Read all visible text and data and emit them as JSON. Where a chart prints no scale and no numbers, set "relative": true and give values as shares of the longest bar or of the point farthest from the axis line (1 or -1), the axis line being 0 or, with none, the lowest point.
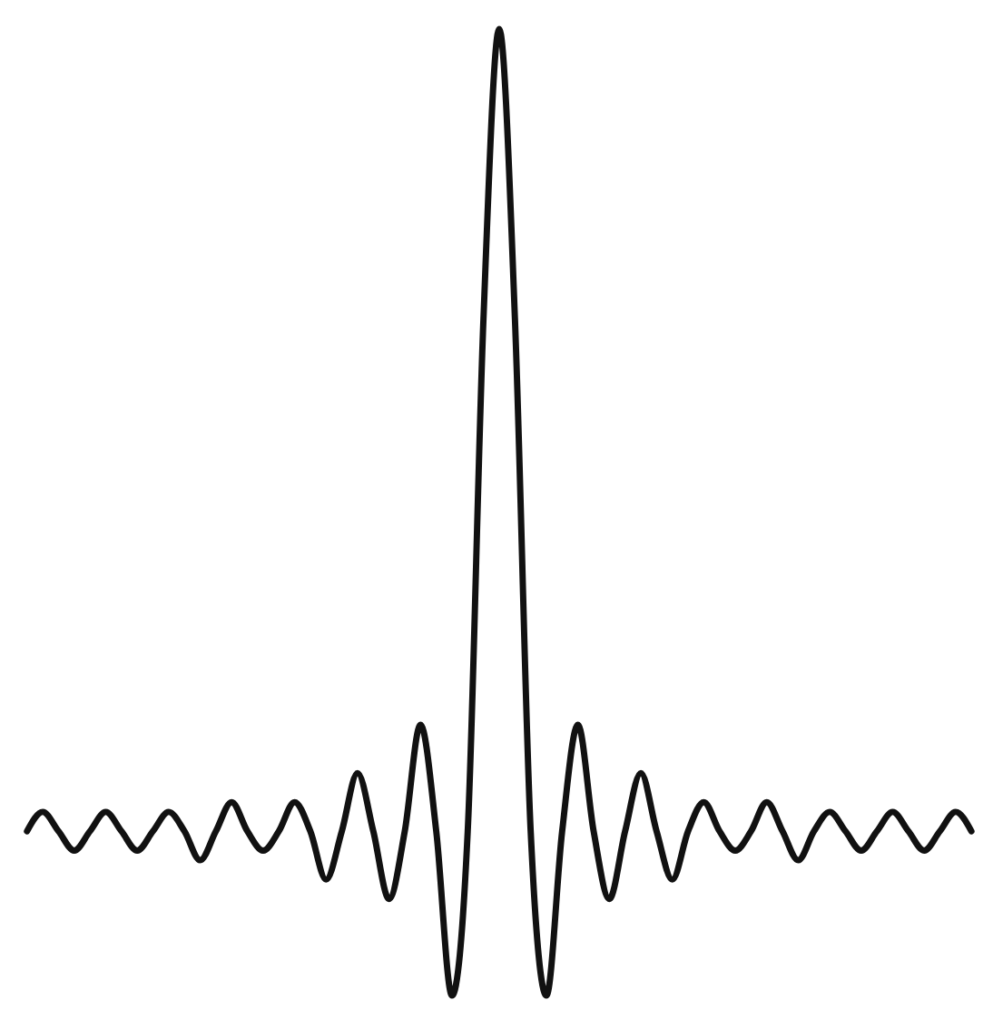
{
  "chart_data": {
    "type": "line",
    "relative": true,
    "color": "#111111",
    "categories": [
      null,
      null,
      null,
      null,
      null,
      null,
      null,
      null,
      null,
      null,
      null,
      null,
      null,
      null,
      null,
      null,
      null,
      null,
      null,
      null,
      null,
      null,
      null,
      null,
      null,
      null,
      null,
      null,
      null,
      null,
      null,
      null,
      null,
      null,
      null,
      null,
      null,
      null,
      null,
      null,
      null,
      null,
      null,
      null,
      null,
      null,
      null,
      null,
      null,
      null,
      null,
      null,
      null,
      null,
      null,
      null,
      null,
      null,
      null,
      null,
      null
    ],
    "values": [
      0.17,
      0.19,
      0.17,
      0.15,
      0.17,
      0.19,
      0.17,
      0.15,
      0.17,
      0.19,
      0.17,
      0.14,
      0.17,
      0.2,
      0.17,
      0.15,
      0.17,
      0.2,
      0.17,
      0.12,
      0.17,
      0.23,
      0.17,
      0.1,
      0.17,
      0.28,
      0.17,
      0,
      0.17,
      0.7,
      1.0,
      0.7,
      0.17,
      0,
      0.17,
      0.28,
      0.17,
      0.1,
      0.17,
      0.23,
      0.17,
      0.12,
      0.17,
      0.2,
      0.17,
      0.15,
      0.17,
      0.2,
      0.17,
      0.14,
      0.17,
      0.19,
      0.17,
      0.15,
      0.17,
      0.19,
      0.17,
      0.15,
      0.17,
      0.19,
      0.17
    ]
  }
}
